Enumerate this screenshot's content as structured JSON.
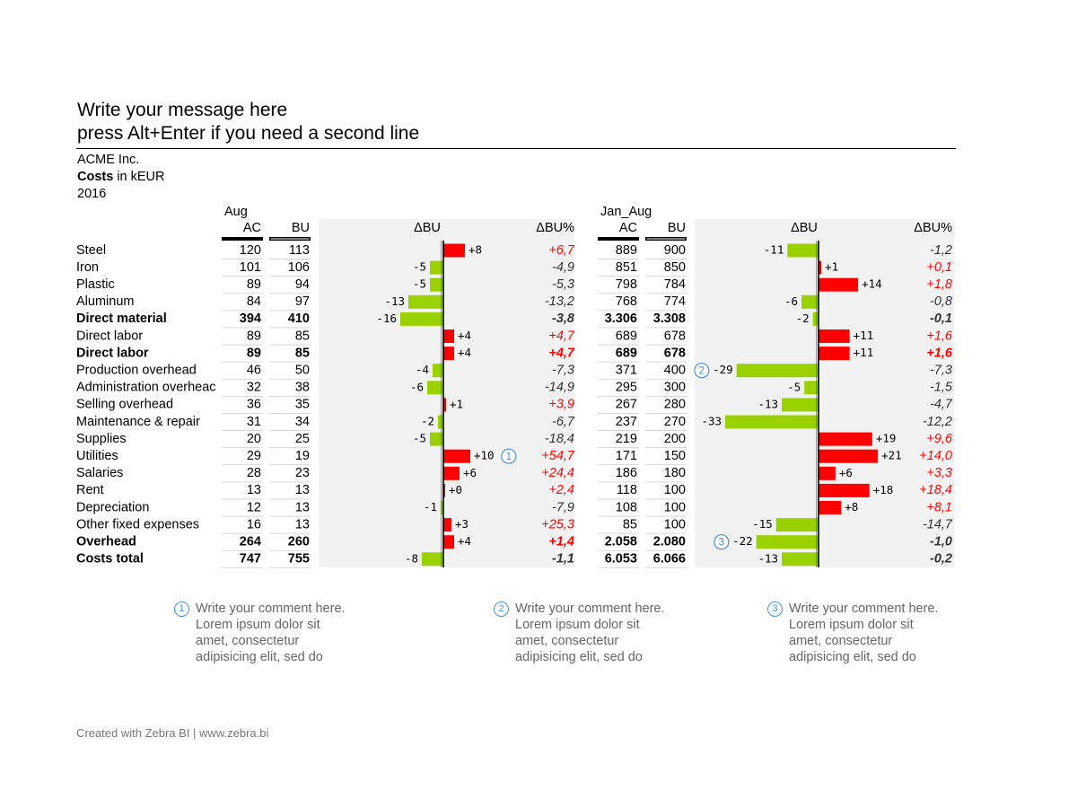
{
  "header": {
    "title_line1": "Write your message here",
    "title_line2": "press Alt+Enter if you need a second line",
    "company": "ACME Inc.",
    "measure_bold": "Costs",
    "measure_rest": " in kEUR",
    "year": "2016"
  },
  "chart_data": {
    "type": "table",
    "rows": [
      "Steel",
      "Iron",
      "Plastic",
      "Aluminum",
      "Direct material",
      "Direct labor",
      "Direct labor",
      "Production overhead",
      "Administration overheac",
      "Selling overhead",
      "Maintenance & repair",
      "Supplies",
      "Utilities",
      "Salaries",
      "Rent",
      "Depreciation",
      "Other fixed expenses",
      "Overhead",
      "Costs total"
    ],
    "bold_rows": [
      4,
      6,
      17,
      18
    ],
    "periods": [
      {
        "label": "Aug",
        "ac_header": "AC",
        "bu_header": "BU",
        "delta_header": "ΔBU",
        "pct_header": "ΔBU%",
        "ac": [
          "120",
          "101",
          "89",
          "84",
          "394",
          "89",
          "89",
          "46",
          "32",
          "36",
          "31",
          "20",
          "29",
          "28",
          "13",
          "12",
          "16",
          "264",
          "747"
        ],
        "bu": [
          "113",
          "106",
          "94",
          "97",
          "410",
          "85",
          "85",
          "50",
          "38",
          "35",
          "34",
          "25",
          "19",
          "23",
          "13",
          "13",
          "13",
          "260",
          "755"
        ],
        "delta": [
          8,
          -5,
          -5,
          -13,
          -16,
          4,
          4,
          -4,
          -6,
          1,
          -2,
          -5,
          10,
          6,
          0,
          -1,
          3,
          4,
          -8
        ],
        "delta_labels": [
          "+8",
          "-5",
          "-5",
          "-13",
          "-16",
          "+4",
          "+4",
          "-4",
          "-6",
          "+1",
          "-2",
          "-5",
          "+10",
          "+6",
          "+0",
          "-1",
          "+3",
          "+4",
          "-8"
        ],
        "pct": [
          "+6,7",
          "-4,9",
          "-5,3",
          "-13,2",
          "-3,8",
          "+4,7",
          "+4,7",
          "-7,3",
          "-14,9",
          "+3,9",
          "-6,7",
          "-18,4",
          "+54,7",
          "+24,4",
          "+2,4",
          "-7,9",
          "+25,3",
          "+1,4",
          "-1,1"
        ],
        "markers": [
          {
            "row": 12,
            "number": "1"
          }
        ]
      },
      {
        "label": "Jan_Aug",
        "ac_header": "AC",
        "bu_header": "BU",
        "delta_header": "ΔBU",
        "pct_header": "ΔBU%",
        "ac": [
          "889",
          "851",
          "798",
          "768",
          "3.306",
          "689",
          "689",
          "371",
          "295",
          "267",
          "237",
          "219",
          "171",
          "186",
          "118",
          "108",
          "85",
          "2.058",
          "6.053"
        ],
        "bu": [
          "900",
          "850",
          "784",
          "774",
          "3.308",
          "678",
          "678",
          "400",
          "300",
          "280",
          "270",
          "200",
          "150",
          "180",
          "100",
          "100",
          "100",
          "2.080",
          "6.066"
        ],
        "delta": [
          -11,
          1,
          14,
          -6,
          -2,
          11,
          11,
          -29,
          -5,
          -13,
          -33,
          19,
          21,
          6,
          18,
          8,
          -15,
          -22,
          -13
        ],
        "delta_labels": [
          "-11",
          "+1",
          "+14",
          "-6",
          "-2",
          "+11",
          "+11",
          "-29",
          "-5",
          "-13",
          "-33",
          "+19",
          "+21",
          "+6",
          "+18",
          "+8",
          "-15",
          "-22",
          "-13"
        ],
        "pct": [
          "-1,2",
          "+0,1",
          "+1,8",
          "-0,8",
          "-0,1",
          "+1,6",
          "+1,6",
          "-7,3",
          "-1,5",
          "-4,7",
          "-12,2",
          "+9,6",
          "+14,0",
          "+3,3",
          "+18,4",
          "+8,1",
          "-14,7",
          "-1,0",
          "-0,2"
        ],
        "markers": [
          {
            "row": 7,
            "number": "2"
          },
          {
            "row": 17,
            "number": "3"
          }
        ]
      }
    ]
  },
  "colors": {
    "increase": "#ff0000",
    "decrease": "#99d200",
    "band": "#f2f2f2",
    "marker": "#4a90d9",
    "pct_text": "#333333"
  },
  "comments": [
    {
      "number": "1",
      "lines": [
        "Write your comment here.",
        "Lorem ipsum dolor sit",
        "amet, consectetur",
        "adipisicing elit, sed do"
      ]
    },
    {
      "number": "2",
      "lines": [
        "Write your comment here.",
        "Lorem ipsum dolor sit",
        "amet, consectetur",
        "adipisicing elit, sed do"
      ]
    },
    {
      "number": "3",
      "lines": [
        "Write your comment here.",
        "Lorem ipsum dolor sit",
        "amet, consectetur",
        "adipisicing elit, sed do"
      ]
    }
  ],
  "footer": {
    "text": "Created with Zebra BI  |  www.zebra.bi"
  }
}
